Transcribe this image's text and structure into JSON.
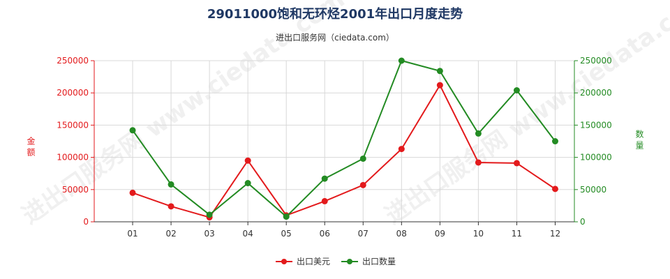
{
  "title": "29011000饱和无环烃2001年出口月度走势",
  "subtitle": "进出口服务网（ciedata.com）",
  "watermark": "进出口服务网 www.ciedata.com",
  "colors": {
    "left": "#e31a1c",
    "right": "#238b23",
    "grid": "#d8d8d8",
    "title": "#1f3864"
  },
  "chart_data": {
    "type": "line",
    "title": "29011000饱和无环烃2001年出口月度走势",
    "subtitle": "进出口服务网（ciedata.com）",
    "categories": [
      "01",
      "02",
      "03",
      "04",
      "05",
      "06",
      "07",
      "08",
      "09",
      "10",
      "11",
      "12"
    ],
    "ylabel_left": "金额",
    "ylabel_right": "数量",
    "ylim_left": [
      0,
      250000
    ],
    "ylim_right": [
      0,
      250000
    ],
    "yticks_left": [
      "0",
      "50000",
      "100000",
      "150000",
      "200000",
      "250000"
    ],
    "yticks_right": [
      "0",
      "50000",
      "100000",
      "150000",
      "200000",
      "250000"
    ],
    "grid": true,
    "legend_position": "bottom-center",
    "series": [
      {
        "name": "出口美元",
        "axis": "left",
        "color": "#e31a1c",
        "values": [
          45000,
          24000,
          7000,
          95000,
          10000,
          32000,
          57000,
          113000,
          212000,
          92000,
          91000,
          51000
        ]
      },
      {
        "name": "出口数量",
        "axis": "right",
        "color": "#238b23",
        "values": [
          142000,
          58000,
          11000,
          60000,
          8000,
          67000,
          98000,
          250000,
          234000,
          137000,
          204000,
          125000
        ]
      }
    ]
  }
}
